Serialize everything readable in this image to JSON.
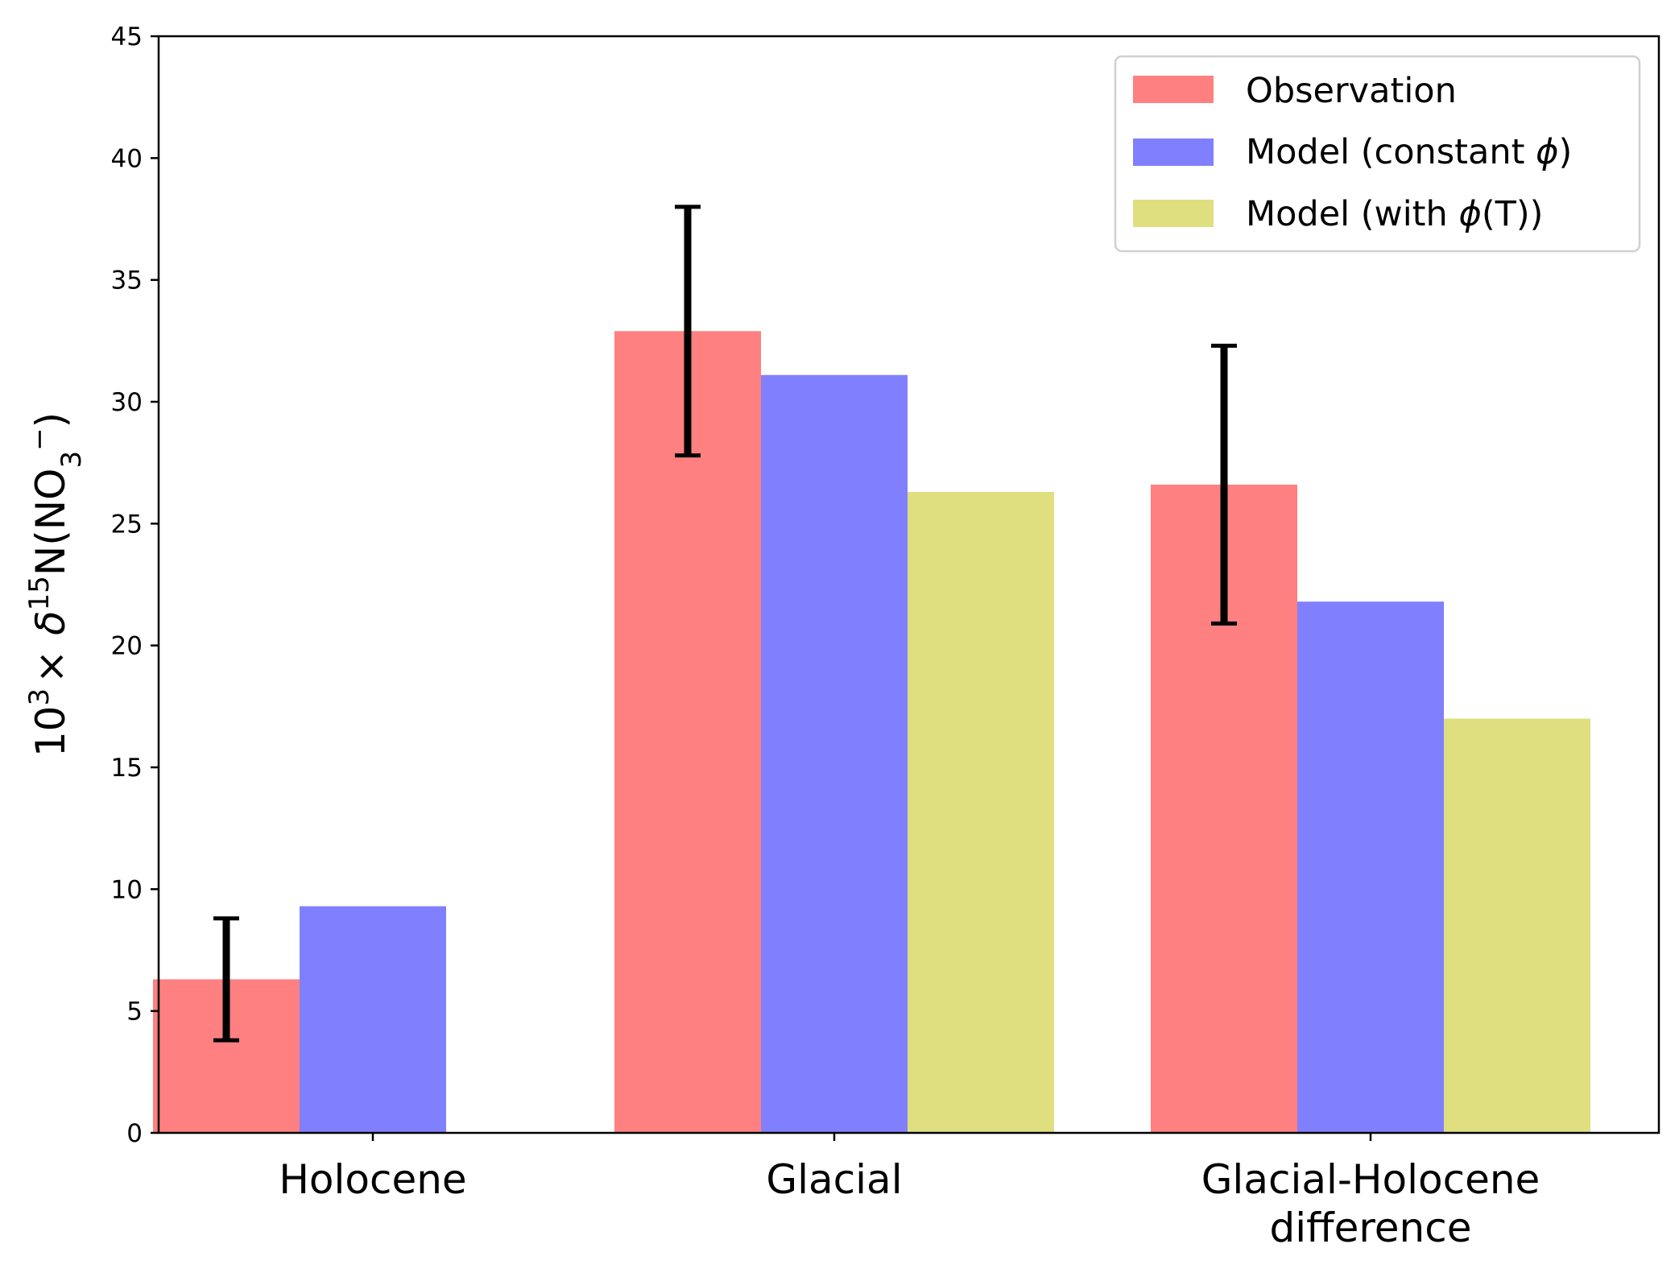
{
  "chart_data": {
    "type": "bar",
    "title": "",
    "xlabel": "",
    "ylabel": {
      "pre": "10",
      "pre_sup": "3",
      "times": "×",
      "delta": "δ",
      "iso_sup": "15",
      "mid": "N(NO",
      "sub": "3",
      "charge": "−",
      "post": ")"
    },
    "ylim": [
      0,
      45
    ],
    "yticks": [
      "0",
      "5",
      "10",
      "15",
      "20",
      "25",
      "30",
      "35",
      "40",
      "45"
    ],
    "categories": [
      {
        "lines": [
          "Holocene"
        ]
      },
      {
        "lines": [
          "Glacial"
        ]
      },
      {
        "lines": [
          "Glacial-Holocene",
          "difference"
        ]
      }
    ],
    "series": [
      {
        "name": {
          "text": "Observation",
          "phi": "",
          "tail": ""
        },
        "color": "#ff8080",
        "values": [
          6.3,
          32.9,
          26.6
        ],
        "err_low": [
          3.8,
          27.8,
          20.9
        ],
        "err_high": [
          8.8,
          38.0,
          32.3
        ]
      },
      {
        "name": {
          "text": "Model (constant ",
          "phi": "ϕ",
          "tail": ")"
        },
        "color": "#8080ff",
        "values": [
          9.3,
          31.1,
          21.8
        ]
      },
      {
        "name": {
          "text": "Model (with ",
          "phi": "ϕ",
          "tail": "(T))"
        },
        "color": "#dfdf80",
        "values": [
          null,
          26.3,
          17.0
        ]
      }
    ],
    "legend_position": "top-right",
    "grid": false
  }
}
